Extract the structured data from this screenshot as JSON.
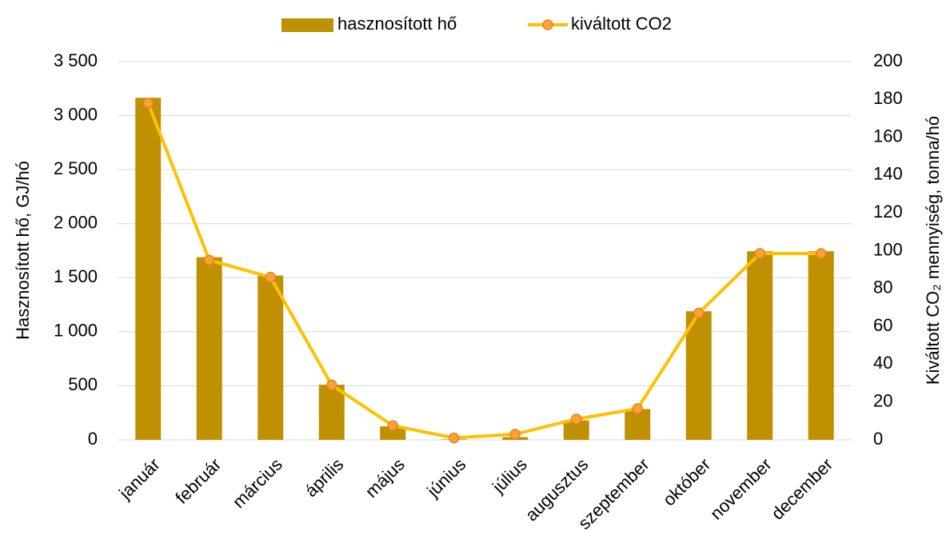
{
  "chart_data": {
    "type": "bar_line",
    "categories": [
      "január",
      "február",
      "március",
      "április",
      "május",
      "június",
      "július",
      "augusztus",
      "szeptember",
      "október",
      "november",
      "december"
    ],
    "series": [
      {
        "name": "hasznosított hő",
        "color": "#bf9000",
        "type": "bar",
        "axis": "y",
        "values": [
          3165,
          1690,
          1520,
          510,
          125,
          5,
          25,
          180,
          285,
          1190,
          1745,
          1745
        ]
      },
      {
        "name": "kiváltott CO2",
        "color": "#ffc000",
        "marker_color": "#f8a530",
        "marker_edge": "#ed7d31",
        "type": "line",
        "axis": "y2",
        "values": [
          178,
          95,
          86,
          29,
          7.5,
          1,
          3,
          11,
          16.5,
          67,
          98.5,
          98.5
        ]
      }
    ],
    "ylabel": "Hasznosított hő, GJ/hó",
    "y2label": "Kiváltott CO₂ mennyiség, tonna/hó",
    "ylim": [
      0,
      3500
    ],
    "yticks": [
      0,
      500,
      {
        "value": 1000,
        "label": "1 000"
      },
      {
        "value": 1500,
        "label": "1 500"
      },
      {
        "value": 2000,
        "label": "2 000"
      },
      {
        "value": 2500,
        "label": "2 500"
      },
      {
        "value": 3000,
        "label": "3 000"
      },
      {
        "value": 3500,
        "label": "3 500"
      }
    ],
    "y2lim": [
      0,
      200
    ],
    "y2ticks": [
      0,
      20,
      40,
      60,
      80,
      100,
      120,
      140,
      160,
      180,
      200
    ],
    "grid": true,
    "legend": "top"
  }
}
